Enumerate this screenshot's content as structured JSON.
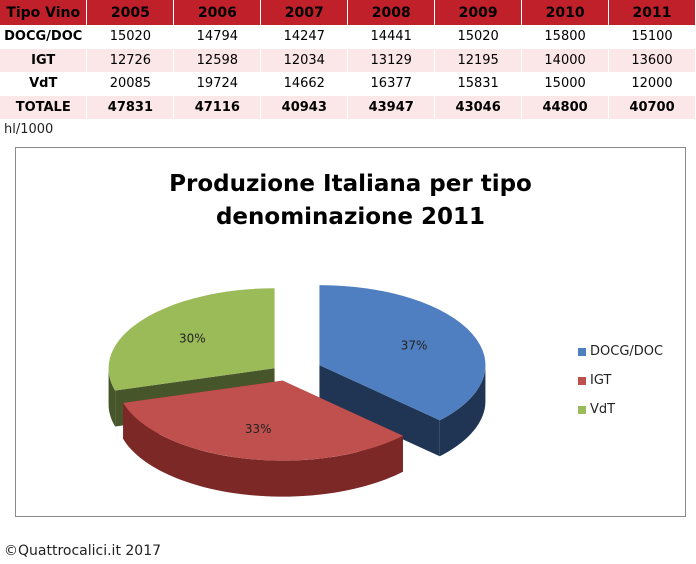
{
  "table": {
    "header": [
      "Tipo Vino",
      "2005",
      "2006",
      "2007",
      "2008",
      "2009",
      "2010",
      "2011"
    ],
    "rows": [
      {
        "label": "DOCG/DOC",
        "values": [
          "15020",
          "14794",
          "14247",
          "14441",
          "15020",
          "15800",
          "15100"
        ]
      },
      {
        "label": "IGT",
        "values": [
          "12726",
          "12598",
          "12034",
          "13129",
          "12195",
          "14000",
          "13600"
        ]
      },
      {
        "label": "VdT",
        "values": [
          "20085",
          "19724",
          "14662",
          "16377",
          "15831",
          "15000",
          "12000"
        ]
      },
      {
        "label": "TOTALE",
        "values": [
          "47831",
          "47116",
          "40943",
          "43947",
          "43046",
          "44800",
          "40700"
        ]
      }
    ],
    "header_color": "#c0202a",
    "stripe_color": "#fbe6e8"
  },
  "unit_note": "hl/1000",
  "chart_data": {
    "type": "pie",
    "title_line1": "Produzione Italiana per tipo",
    "title_line2": "denominazione 2011",
    "slices": [
      {
        "name": "DOCG/DOC",
        "value": 15100,
        "label": "37%",
        "color": "#4f7fc0",
        "side_color": "#1f3553"
      },
      {
        "name": "IGT",
        "value": 13600,
        "label": "33%",
        "color": "#c0504d",
        "side_color": "#7b2826"
      },
      {
        "name": "VdT",
        "value": 12000,
        "label": "30%",
        "color": "#9bbb59",
        "side_color": "#46552a"
      }
    ],
    "legend_placement": "right",
    "style": "3d-exploded"
  },
  "footer": "©Quattrocalici.it 2017"
}
